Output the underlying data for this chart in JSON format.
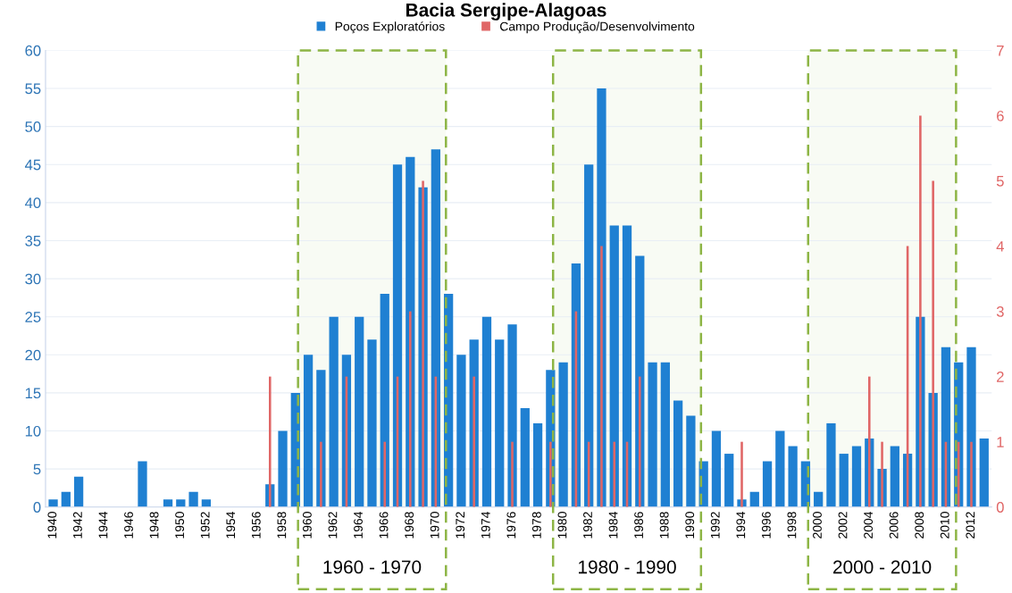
{
  "chart_data": {
    "type": "bar",
    "title": "Bacia Sergipe-Alagoas",
    "categories": [
      "1940",
      null,
      "1942",
      null,
      "1944",
      null,
      "1946",
      null,
      "1948",
      null,
      "1950",
      null,
      "1952",
      null,
      "1954",
      null,
      "1956",
      null,
      "1958",
      null,
      "1960",
      null,
      "1962",
      null,
      "1964",
      null,
      "1966",
      null,
      "1968",
      null,
      "1970",
      null,
      "1972",
      null,
      "1974",
      null,
      "1976",
      null,
      "1978",
      null,
      "1980",
      null,
      "1982",
      null,
      "1984",
      null,
      "1986",
      null,
      "1988",
      null,
      "1990",
      null,
      "1992",
      null,
      "1994",
      null,
      "1996",
      null,
      "1998",
      null,
      "2000",
      null,
      "2002",
      null,
      "2004",
      null,
      "2006",
      null,
      "2008",
      null,
      "2010",
      null,
      "2012",
      null
    ],
    "series": [
      {
        "name": "Poços Exploratórios",
        "color": "#1f80d2",
        "values": [
          1,
          2,
          4,
          0,
          0,
          0,
          0,
          6,
          0,
          1,
          1,
          2,
          1,
          0,
          0,
          0,
          0,
          3,
          10,
          15,
          20,
          18,
          25,
          20,
          25,
          22,
          28,
          45,
          46,
          42,
          47,
          28,
          20,
          22,
          25,
          22,
          24,
          13,
          11,
          18,
          19,
          32,
          45,
          55,
          37,
          37,
          33,
          19,
          19,
          14,
          12,
          6,
          10,
          7,
          1,
          2,
          6,
          10,
          8,
          6,
          2,
          11,
          7,
          8,
          9,
          5,
          8,
          7,
          25,
          15,
          21,
          19,
          21,
          9
        ]
      },
      {
        "name": "Campo Produção/Desenvolvimento",
        "color": "#e06666",
        "axis": "y2",
        "values": [
          0,
          0,
          0,
          0,
          0,
          0,
          0,
          0,
          0,
          0,
          0,
          0,
          0,
          0,
          0,
          0,
          0,
          2,
          0,
          0,
          0,
          1,
          0,
          2,
          0,
          0,
          1,
          2,
          3,
          5,
          2,
          0,
          0,
          2,
          0,
          0,
          1,
          0,
          0,
          1,
          0,
          3,
          1,
          4,
          1,
          1,
          2,
          0,
          0,
          0,
          0,
          0,
          0,
          0,
          1,
          0,
          0,
          0,
          0,
          0,
          0,
          0,
          0,
          0,
          2,
          1,
          0,
          4,
          6,
          5,
          1,
          1,
          1,
          0
        ]
      }
    ],
    "ylim": [
      0,
      60
    ],
    "yticks": [
      0,
      5,
      10,
      15,
      20,
      25,
      30,
      35,
      40,
      45,
      50,
      55,
      60
    ],
    "y2lim": [
      0,
      7
    ],
    "y2ticks": [
      0,
      1,
      2,
      3,
      4,
      5,
      6,
      7
    ],
    "bands": [
      {
        "axis": "x",
        "from": "1960",
        "to": "1970",
        "label": "1960 - 1970",
        "color": "#8db545"
      },
      {
        "axis": "x",
        "from": "1980",
        "to": "1990",
        "label": "1980 - 1990",
        "color": "#8db545"
      },
      {
        "axis": "x",
        "from": "2000",
        "to": "2010",
        "label": "2000 - 2010",
        "color": "#8db545"
      }
    ],
    "grid": "y",
    "legend": "top"
  }
}
